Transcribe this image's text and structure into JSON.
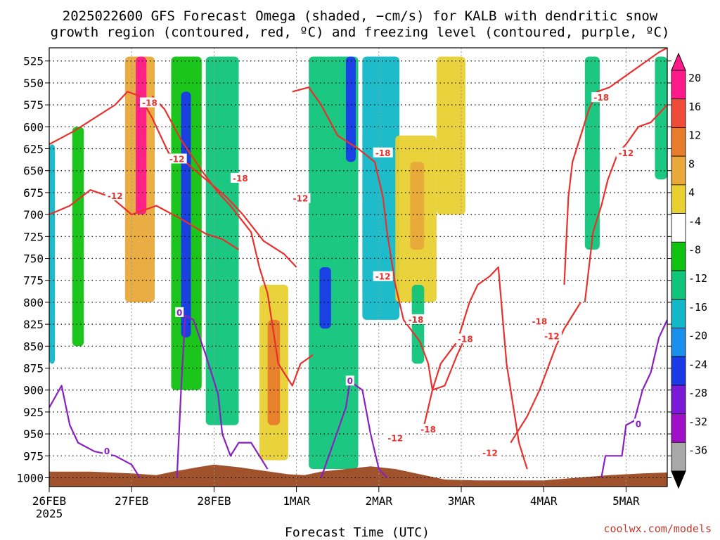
{
  "chart_data": {
    "type": "heatmap",
    "title_line1": "2025022600 GFS Forecast Omega (shaded, −cm/s) for KALB with dendritic snow",
    "title_line2": "growth region (contoured, red, ºC) and freezing level (contoured, purple, ºC)",
    "xlabel": "Forecast Time (UTC)",
    "ylabel": "",
    "credit": "coolwx.com/models",
    "x_ticks": [
      {
        "label": "26FEB",
        "sub": "2025",
        "day": 0
      },
      {
        "label": "27FEB",
        "sub": "",
        "day": 1
      },
      {
        "label": "28FEB",
        "sub": "",
        "day": 2
      },
      {
        "label": "1MAR",
        "sub": "",
        "day": 3
      },
      {
        "label": "2MAR",
        "sub": "",
        "day": 4
      },
      {
        "label": "3MAR",
        "sub": "",
        "day": 5
      },
      {
        "label": "4MAR",
        "sub": "",
        "day": 6
      },
      {
        "label": "5MAR",
        "sub": "",
        "day": 7
      }
    ],
    "x_range_days": [
      0,
      7.5
    ],
    "y_ticks": [
      525,
      550,
      575,
      600,
      625,
      650,
      675,
      700,
      725,
      750,
      775,
      800,
      825,
      850,
      875,
      900,
      925,
      950,
      975,
      1000
    ],
    "y_range_hpa": [
      510,
      1010
    ],
    "grid": true,
    "colorbar": {
      "labels": [
        "20",
        "16",
        "12",
        "8",
        "4",
        "-4",
        "-8",
        "-12",
        "-16",
        "-20",
        "-24",
        "-28",
        "-32",
        "-36"
      ],
      "colors": [
        "#ff1a8c",
        "#f04a3a",
        "#e87c2a",
        "#e8a93a",
        "#e8d030",
        "#ffffff",
        "#0fc20f",
        "#10c47a",
        "#12b8c8",
        "#1a90ee",
        "#1a3ae8",
        "#7a1ad8",
        "#a010c8",
        "#a8a8a8"
      ]
    },
    "shaded_regions": [
      {
        "day0": 0.0,
        "day1": 0.07,
        "p0": 620,
        "p1": 870,
        "color": "#12b8c8"
      },
      {
        "day0": 0.28,
        "day1": 0.42,
        "p0": 600,
        "p1": 850,
        "color": "#0fc20f"
      },
      {
        "day0": 0.92,
        "day1": 1.28,
        "p0": 520,
        "p1": 800,
        "color": "#e8a93a"
      },
      {
        "day0": 1.05,
        "day1": 1.18,
        "p0": 520,
        "p1": 700,
        "color": "#ff1a8c"
      },
      {
        "day0": 1.48,
        "day1": 1.85,
        "p0": 520,
        "p1": 900,
        "color": "#0fc20f"
      },
      {
        "day0": 1.6,
        "day1": 1.72,
        "p0": 560,
        "p1": 840,
        "color": "#1a3ae8"
      },
      {
        "day0": 1.9,
        "day1": 2.3,
        "p0": 520,
        "p1": 940,
        "color": "#10c47a"
      },
      {
        "day0": 2.55,
        "day1": 2.9,
        "p0": 780,
        "p1": 980,
        "color": "#e8d030"
      },
      {
        "day0": 2.65,
        "day1": 2.8,
        "p0": 820,
        "p1": 940,
        "color": "#e87c2a"
      },
      {
        "day0": 3.15,
        "day1": 3.75,
        "p0": 520,
        "p1": 990,
        "color": "#10c47a"
      },
      {
        "day0": 3.28,
        "day1": 3.42,
        "p0": 760,
        "p1": 830,
        "color": "#1a3ae8"
      },
      {
        "day0": 3.6,
        "day1": 3.72,
        "p0": 520,
        "p1": 640,
        "color": "#1a3ae8"
      },
      {
        "day0": 3.8,
        "day1": 4.25,
        "p0": 520,
        "p1": 820,
        "color": "#12b8c8"
      },
      {
        "day0": 4.2,
        "day1": 4.7,
        "p0": 610,
        "p1": 800,
        "color": "#e8d030"
      },
      {
        "day0": 4.38,
        "day1": 4.55,
        "p0": 640,
        "p1": 740,
        "color": "#e8a93a"
      },
      {
        "day0": 4.4,
        "day1": 4.55,
        "p0": 780,
        "p1": 870,
        "color": "#10c47a"
      },
      {
        "day0": 4.7,
        "day1": 5.05,
        "p0": 520,
        "p1": 700,
        "color": "#e8d030"
      },
      {
        "day0": 6.5,
        "day1": 6.68,
        "p0": 520,
        "p1": 740,
        "color": "#10c47a"
      },
      {
        "day0": 7.35,
        "day1": 7.5,
        "p0": 520,
        "p1": 660,
        "color": "#10c47a"
      }
    ],
    "contours": [
      {
        "name": "-12",
        "color": "#e8302c",
        "points": [
          [
            0.0,
            620
          ],
          [
            0.3,
            605
          ],
          [
            0.55,
            590
          ],
          [
            0.8,
            575
          ],
          [
            0.95,
            560
          ],
          [
            1.1,
            565
          ],
          [
            1.25,
            590
          ],
          [
            1.45,
            630
          ],
          [
            1.65,
            640
          ],
          [
            1.9,
            660
          ],
          [
            2.15,
            680
          ],
          [
            2.35,
            700
          ],
          [
            2.6,
            730
          ],
          [
            2.85,
            745
          ],
          [
            3.0,
            760
          ]
        ]
      },
      {
        "name": "-12",
        "color": "#e8302c",
        "points": [
          [
            0.0,
            700
          ],
          [
            0.25,
            690
          ],
          [
            0.5,
            672
          ],
          [
            0.75,
            680
          ],
          [
            1.0,
            700
          ],
          [
            1.3,
            690
          ],
          [
            1.6,
            705
          ],
          [
            1.9,
            722
          ],
          [
            2.1,
            728
          ],
          [
            2.3,
            740
          ]
        ]
      },
      {
        "name": "-18",
        "color": "#e8302c",
        "points": [
          [
            1.25,
            565
          ],
          [
            1.4,
            580
          ],
          [
            1.6,
            615
          ],
          [
            1.85,
            650
          ],
          [
            2.05,
            675
          ],
          [
            2.2,
            690
          ],
          [
            2.45,
            720
          ],
          [
            2.55,
            760
          ],
          [
            2.65,
            790
          ],
          [
            2.78,
            870
          ],
          [
            2.95,
            895
          ],
          [
            3.05,
            870
          ],
          [
            3.2,
            860
          ]
        ]
      },
      {
        "name": "-12",
        "color": "#e8302c",
        "points": [
          [
            2.95,
            560
          ],
          [
            3.15,
            555
          ],
          [
            3.3,
            575
          ],
          [
            3.5,
            610
          ],
          [
            3.75,
            625
          ],
          [
            3.95,
            640
          ],
          [
            4.05,
            680
          ],
          [
            4.1,
            720
          ],
          [
            4.2,
            780
          ],
          [
            4.3,
            820
          ],
          [
            4.5,
            845
          ],
          [
            4.6,
            870
          ],
          [
            4.65,
            900
          ],
          [
            4.8,
            895
          ],
          [
            4.95,
            860
          ],
          [
            5.05,
            840
          ]
        ]
      },
      {
        "name": "-18",
        "color": "#e8302c",
        "points": [
          [
            4.55,
            940
          ],
          [
            4.65,
            900
          ],
          [
            4.75,
            870
          ],
          [
            4.95,
            845
          ],
          [
            5.1,
            800
          ],
          [
            5.2,
            780
          ],
          [
            5.35,
            770
          ],
          [
            5.45,
            760
          ],
          [
            5.55,
            870
          ],
          [
            5.6,
            900
          ],
          [
            5.7,
            960
          ],
          [
            5.8,
            990
          ]
        ]
      },
      {
        "name": "-18",
        "color": "#e8302c",
        "points": [
          [
            5.6,
            960
          ],
          [
            5.8,
            930
          ],
          [
            5.95,
            900
          ],
          [
            6.05,
            875
          ],
          [
            6.15,
            850
          ],
          [
            6.25,
            830
          ],
          [
            6.35,
            815
          ],
          [
            6.45,
            800
          ]
        ]
      },
      {
        "name": "-18",
        "color": "#e8302c",
        "points": [
          [
            6.25,
            780
          ],
          [
            6.3,
            680
          ],
          [
            6.35,
            640
          ],
          [
            6.45,
            610
          ],
          [
            6.55,
            580
          ],
          [
            6.65,
            560
          ],
          [
            6.8,
            555
          ],
          [
            6.95,
            545
          ],
          [
            7.1,
            535
          ],
          [
            7.25,
            525
          ],
          [
            7.4,
            515
          ],
          [
            7.5,
            510
          ]
        ]
      },
      {
        "name": "-12",
        "color": "#e8302c",
        "points": [
          [
            6.5,
            800
          ],
          [
            6.55,
            760
          ],
          [
            6.6,
            720
          ],
          [
            6.7,
            690
          ],
          [
            6.78,
            660
          ],
          [
            6.9,
            630
          ],
          [
            7.0,
            620
          ],
          [
            7.15,
            600
          ],
          [
            7.3,
            595
          ],
          [
            7.45,
            580
          ],
          [
            7.5,
            575
          ]
        ]
      },
      {
        "name": "0",
        "color": "#8a1fc2",
        "points": [
          [
            0.0,
            920
          ],
          [
            0.15,
            895
          ],
          [
            0.25,
            940
          ],
          [
            0.35,
            960
          ],
          [
            0.55,
            970
          ],
          [
            0.8,
            975
          ],
          [
            1.0,
            985
          ],
          [
            1.1,
            1000
          ]
        ]
      },
      {
        "name": "0",
        "color": "#8a1fc2",
        "points": [
          [
            1.55,
            1000
          ],
          [
            1.6,
            900
          ],
          [
            1.65,
            815
          ],
          [
            1.75,
            820
          ],
          [
            1.9,
            860
          ],
          [
            2.05,
            905
          ],
          [
            2.1,
            950
          ],
          [
            2.2,
            975
          ],
          [
            2.3,
            960
          ],
          [
            2.45,
            960
          ],
          [
            2.55,
            975
          ],
          [
            2.65,
            990
          ]
        ]
      },
      {
        "name": "0",
        "color": "#8a1fc2",
        "points": [
          [
            3.3,
            1000
          ],
          [
            3.45,
            960
          ],
          [
            3.6,
            920
          ],
          [
            3.65,
            890
          ],
          [
            3.8,
            900
          ],
          [
            3.9,
            950
          ],
          [
            4.0,
            990
          ],
          [
            4.1,
            1000
          ]
        ]
      },
      {
        "name": "0",
        "color": "#8a1fc2",
        "points": [
          [
            6.7,
            1000
          ],
          [
            6.75,
            975
          ],
          [
            6.95,
            975
          ],
          [
            7.0,
            940
          ],
          [
            7.1,
            935
          ],
          [
            7.2,
            900
          ],
          [
            7.3,
            880
          ],
          [
            7.4,
            840
          ],
          [
            7.5,
            820
          ]
        ]
      }
    ],
    "contour_labels": [
      {
        "text": "-18",
        "day": 1.22,
        "p": 573,
        "color": "#e8302c"
      },
      {
        "text": "-12",
        "day": 1.55,
        "p": 637,
        "color": "#e8302c"
      },
      {
        "text": "-18",
        "day": 2.32,
        "p": 659,
        "color": "#e8302c"
      },
      {
        "text": "-12",
        "day": 0.8,
        "p": 679,
        "color": "#e8302c"
      },
      {
        "text": "-12",
        "day": 3.05,
        "p": 682,
        "color": "#e8302c"
      },
      {
        "text": "-18",
        "day": 4.05,
        "p": 630,
        "color": "#e8302c"
      },
      {
        "text": "-12",
        "day": 4.05,
        "p": 771,
        "color": "#e8302c"
      },
      {
        "text": "-18",
        "day": 4.45,
        "p": 820,
        "color": "#e8302c"
      },
      {
        "text": "-18",
        "day": 5.05,
        "p": 842,
        "color": "#e8302c"
      },
      {
        "text": "-18",
        "day": 5.95,
        "p": 822,
        "color": "#e8302c"
      },
      {
        "text": "-12",
        "day": 6.1,
        "p": 839,
        "color": "#e8302c"
      },
      {
        "text": "-12",
        "day": 4.2,
        "p": 955,
        "color": "#e8302c"
      },
      {
        "text": "-18",
        "day": 4.6,
        "p": 945,
        "color": "#e8302c"
      },
      {
        "text": "-12",
        "day": 5.35,
        "p": 972,
        "color": "#e8302c"
      },
      {
        "text": "-18",
        "day": 6.7,
        "p": 567,
        "color": "#e8302c"
      },
      {
        "text": "-12",
        "day": 7.0,
        "p": 630,
        "color": "#e8302c"
      },
      {
        "text": "0",
        "day": 1.58,
        "p": 812,
        "color": "#8a1fc2"
      },
      {
        "text": "0",
        "day": 3.65,
        "p": 890,
        "color": "#8a1fc2"
      },
      {
        "text": "0",
        "day": 0.7,
        "p": 970,
        "color": "#8a1fc2"
      },
      {
        "text": "0",
        "day": 7.15,
        "p": 939,
        "color": "#8a1fc2"
      }
    ],
    "terrain": {
      "color": "#a0522d",
      "points": [
        [
          0,
          993
        ],
        [
          0.5,
          993
        ],
        [
          1.0,
          995
        ],
        [
          1.3,
          997
        ],
        [
          1.5,
          993
        ],
        [
          1.8,
          988
        ],
        [
          2.0,
          985
        ],
        [
          2.3,
          988
        ],
        [
          2.6,
          992
        ],
        [
          2.9,
          996
        ],
        [
          3.1,
          997
        ],
        [
          3.3,
          993
        ],
        [
          3.6,
          990
        ],
        [
          3.9,
          987
        ],
        [
          4.2,
          990
        ],
        [
          4.5,
          996
        ],
        [
          4.8,
          1002
        ],
        [
          5.2,
          1003
        ],
        [
          5.6,
          1003
        ],
        [
          6.0,
          1003
        ],
        [
          6.4,
          1000
        ],
        [
          6.8,
          997
        ],
        [
          7.2,
          995
        ],
        [
          7.5,
          994
        ]
      ]
    }
  }
}
